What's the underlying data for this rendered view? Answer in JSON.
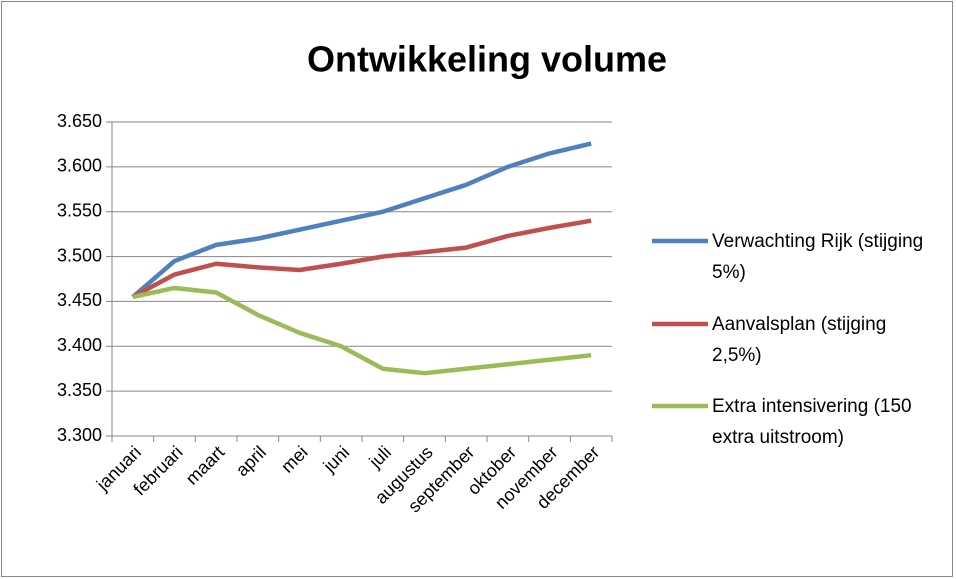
{
  "chart_data": {
    "type": "line",
    "title": "Ontwikkeling volume",
    "categories": [
      "januari",
      "februari",
      "maart",
      "april",
      "mei",
      "juni",
      "juli",
      "augustus",
      "september",
      "oktober",
      "november",
      "december"
    ],
    "series": [
      {
        "name": "Verwachting Rijk (stijging 5%)",
        "color": "#4f81bd",
        "values": [
          3455,
          3495,
          3513,
          3520,
          3530,
          3540,
          3550,
          3565,
          3580,
          3600,
          3615,
          3626
        ]
      },
      {
        "name": "Aanvalsplan (stijging 2,5%)",
        "color": "#c0504d",
        "values": [
          3455,
          3480,
          3492,
          3488,
          3485,
          3492,
          3500,
          3505,
          3510,
          3523,
          3532,
          3540
        ]
      },
      {
        "name": "Extra intensivering (150 extra uitstroom)",
        "color": "#9bbb59",
        "values": [
          3455,
          3465,
          3460,
          3435,
          3415,
          3400,
          3375,
          3370,
          3375,
          3380,
          3385,
          3390
        ]
      }
    ],
    "ylim": [
      3300,
      3650
    ],
    "yticks": [
      {
        "value": 3300,
        "label": "3.300"
      },
      {
        "value": 3350,
        "label": "3.350"
      },
      {
        "value": 3400,
        "label": "3.400"
      },
      {
        "value": 3450,
        "label": "3.450"
      },
      {
        "value": 3500,
        "label": "3.500"
      },
      {
        "value": 3550,
        "label": "3.550"
      },
      {
        "value": 3600,
        "label": "3.600"
      },
      {
        "value": 3650,
        "label": "3.650"
      }
    ],
    "grid": true,
    "legend": "right"
  }
}
